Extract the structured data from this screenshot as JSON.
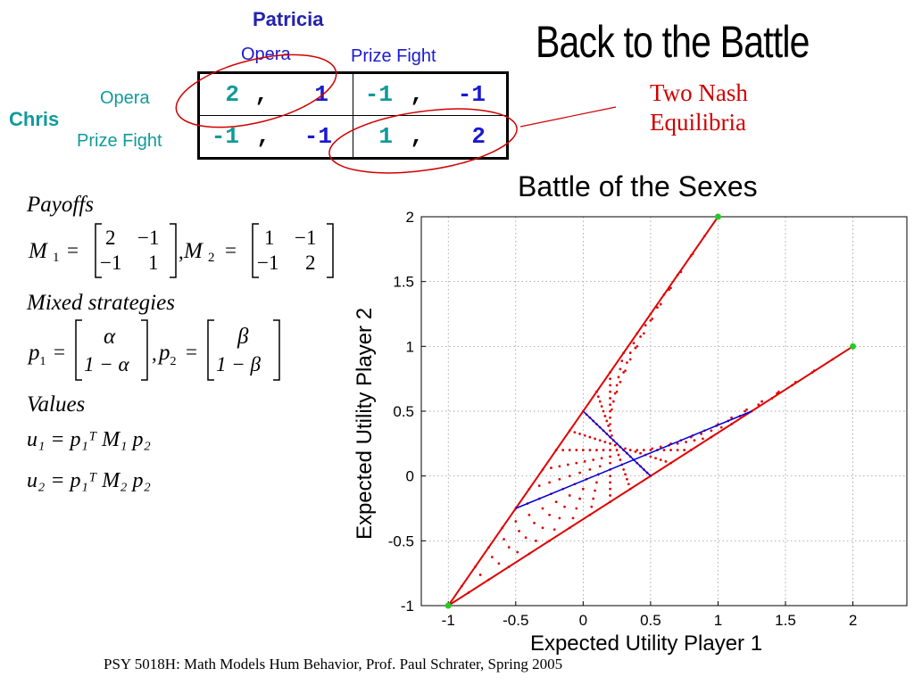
{
  "slide": {
    "title": "Back to the Battle",
    "nash_line1": "Two Nash",
    "nash_line2": "Equilibria",
    "footer": "PSY 5018H: Math Models Hum Behavior, Prof. Paul Schrater, Spring 2005"
  },
  "payoff_table": {
    "column_player": "Patricia",
    "row_player": "Chris",
    "column_options": [
      "Opera",
      "Prize Fight"
    ],
    "row_options": [
      "Opera",
      "Prize Fight"
    ],
    "cells": [
      [
        {
          "a": "2",
          "b": "1"
        },
        {
          "a": "-1",
          "b": "-1"
        }
      ],
      [
        {
          "a": "-1",
          "b": "-1"
        },
        {
          "a": "1",
          "b": "2"
        }
      ]
    ],
    "separator": ","
  },
  "math": {
    "payoffs_heading": "Payoffs",
    "M1_label": "M",
    "M1_sub": "1",
    "M1": [
      [
        "2",
        "−1"
      ],
      [
        "−1",
        "1"
      ]
    ],
    "M2_label": "M",
    "M2_sub": "2",
    "M2": [
      [
        "1",
        "−1"
      ],
      [
        "−1",
        "2"
      ]
    ],
    "mixed_heading": "Mixed strategies",
    "p1_vector": [
      "α",
      "1 − α"
    ],
    "p2_vector": [
      "β",
      "1 − β"
    ],
    "values_heading": "Values",
    "u1": "u₁ = p₁ᵀ M₁ p₂",
    "u2": "u₂ = p₁ᵀ M₂ p₂"
  },
  "chart_data": {
    "type": "scatter",
    "title": "Battle of the Sexes",
    "xlabel": "Expected Utility Player 1",
    "ylabel": "Expected Utility Player 2",
    "xlim": [
      -1.2,
      2.4
    ],
    "ylim": [
      -1,
      2
    ],
    "xticks": [
      -1,
      -0.5,
      0,
      0.5,
      1,
      1.5,
      2
    ],
    "yticks": [
      -1,
      -0.5,
      0,
      0.5,
      1,
      1.5,
      2
    ],
    "grid": true,
    "equilibrium_points": [
      {
        "x": -1,
        "y": -1
      },
      {
        "x": 1,
        "y": 2
      },
      {
        "x": 2,
        "y": 1
      }
    ],
    "boundary_lines": [
      {
        "from": [
          -1,
          -1
        ],
        "to": [
          1,
          2
        ]
      },
      {
        "from": [
          -1,
          -1
        ],
        "to": [
          2,
          1
        ]
      }
    ],
    "blue_lines": [
      {
        "from": [
          -0.5,
          -0.25
        ],
        "to": [
          1.25,
          0.5
        ]
      },
      {
        "from": [
          0,
          0.5
        ],
        "to": [
          0.5,
          0
        ]
      }
    ],
    "colors": {
      "boundary": "#e00000",
      "dots": "#e00000",
      "blue": "#0000e0",
      "equilibria": "#22cc22"
    }
  }
}
